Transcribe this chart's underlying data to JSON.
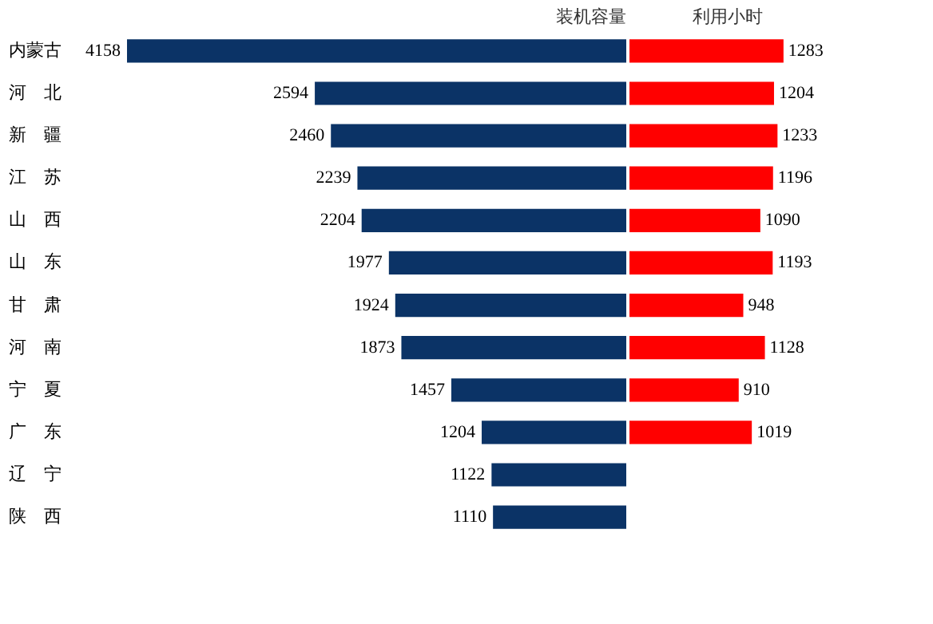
{
  "chart_data": [
    {
      "type": "bar",
      "orientation": "horizontal",
      "title": "装机容量",
      "categories": [
        "内蒙古",
        "河　北",
        "新　疆",
        "江　苏",
        "山　西",
        "山　东",
        "甘　肃",
        "河　南",
        "宁　夏",
        "广　东",
        "辽　宁",
        "陕　西"
      ],
      "color": "#0b3366",
      "values": [
        4158,
        2594,
        2460,
        2239,
        2204,
        1977,
        1924,
        1873,
        1457,
        1204,
        1122,
        1110
      ],
      "data_labels": true,
      "tick_labels": "y"
    },
    {
      "type": "bar",
      "orientation": "horizontal",
      "title": "利用小时",
      "categories": [
        null,
        null,
        null,
        null,
        null,
        null,
        null,
        null,
        null,
        null,
        null,
        null
      ],
      "color": "#ff0000",
      "values": [
        1283,
        1204,
        1233,
        1196,
        1090,
        1193,
        948,
        1128,
        910,
        1019,
        null,
        null
      ],
      "data_labels": true,
      "tick_labels": false
    }
  ]
}
